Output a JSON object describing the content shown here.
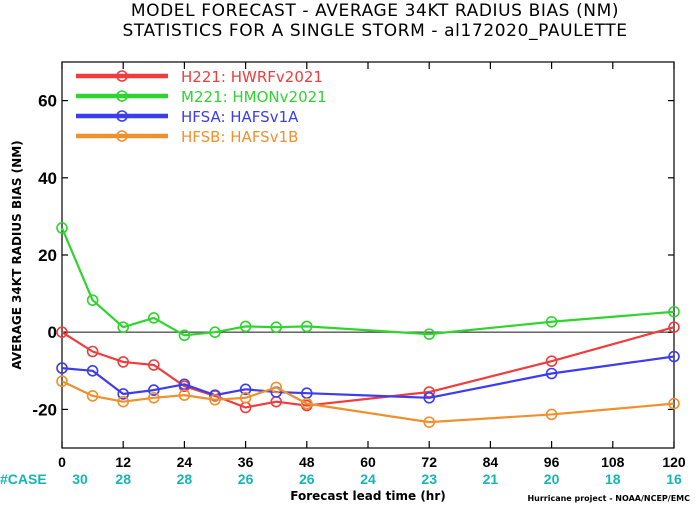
{
  "chart_data": {
    "type": "line",
    "title": "MODEL FORECAST - AVERAGE 34KT RADIUS BIAS (NM)",
    "subtitle": "STATISTICS FOR A SINGLE STORM - al172020_PAULETTE",
    "xlabel": "Forecast lead time (hr)",
    "ylabel": "AVERAGE 34KT RADIUS BIAS (NM)",
    "xlim": [
      0,
      120
    ],
    "ylim": [
      -30,
      70
    ],
    "xticks": [
      "0",
      "12",
      "24",
      "36",
      "48",
      "60",
      "72",
      "84",
      "96",
      "108",
      "120"
    ],
    "yticks": [
      "-20",
      "0",
      "20",
      "40",
      "60"
    ],
    "zero_line": true,
    "legend_position": "top-left",
    "case_label": "#CASE",
    "case_counts": [
      "30",
      "28",
      "28",
      "26",
      "26",
      "24",
      "23",
      "21",
      "20",
      "18",
      "16"
    ],
    "credit": "Hurricane project - NOAA/NCEP/EMC",
    "series": [
      {
        "name": "H221: HWRFv2021",
        "color": "#f03c3c",
        "x": [
          0,
          6,
          12,
          18,
          24,
          30,
          36,
          42,
          48,
          72,
          96,
          120
        ],
        "y": [
          0,
          -5,
          -7.7,
          -8.5,
          -14,
          -16.5,
          -19.5,
          -18,
          -19,
          -15.5,
          -7.5,
          1.3
        ]
      },
      {
        "name": "M221: HMONv2021",
        "color": "#2fd42f",
        "x": [
          0,
          6,
          12,
          18,
          24,
          30,
          36,
          42,
          48,
          72,
          96,
          120
        ],
        "y": [
          27,
          8.3,
          1.3,
          3.7,
          -0.8,
          0,
          1.5,
          1.3,
          1.5,
          -0.5,
          2.7,
          5.3
        ]
      },
      {
        "name": "HFSA: HAFSv1A",
        "color": "#3c3cf0",
        "x": [
          0,
          6,
          12,
          18,
          24,
          30,
          36,
          42,
          48,
          72,
          96,
          120
        ],
        "y": [
          -9.3,
          -10,
          -16,
          -15,
          -13.5,
          -16.3,
          -14.8,
          -15.5,
          -15.8,
          -17,
          -10.7,
          -6.3
        ]
      },
      {
        "name": "HFSB: HAFSv1B",
        "color": "#f0902c",
        "x": [
          0,
          6,
          12,
          18,
          24,
          30,
          36,
          42,
          48,
          72,
          96,
          120
        ],
        "y": [
          -12.7,
          -16.5,
          -18,
          -17,
          -16.3,
          -17.5,
          -17,
          -14.3,
          -18.5,
          -23.3,
          -21.3,
          -18.5
        ]
      }
    ]
  }
}
